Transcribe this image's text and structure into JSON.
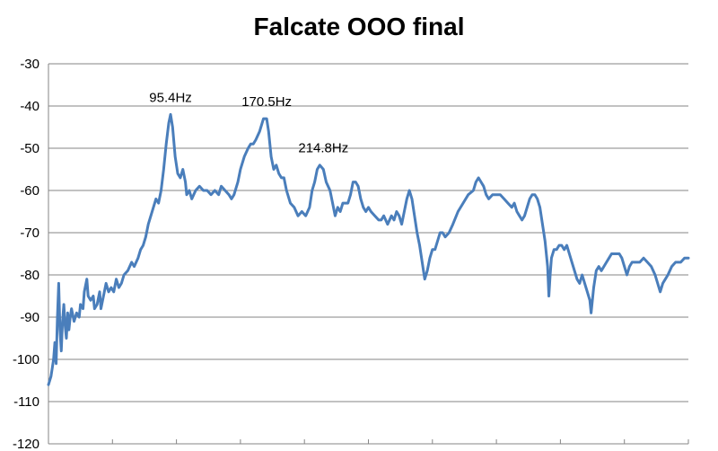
{
  "chart_data": {
    "type": "line",
    "title": "Falcate OOO final",
    "xlabel": "",
    "ylabel": "",
    "xlim": [
      0,
      500
    ],
    "ylim": [
      -120,
      -30
    ],
    "x_ticks": [
      "0",
      "50",
      "100",
      "150",
      "200",
      "250",
      "300",
      "350",
      "400",
      "450",
      "500"
    ],
    "y_ticks": [
      "-30",
      "-40",
      "-50",
      "-60",
      "-70",
      "-80",
      "-90",
      "-100",
      "-110",
      "-120"
    ],
    "grid": "horizontal",
    "legend": "none",
    "series": [
      {
        "color": "#4a7ebb",
        "points": [
          [
            0,
            -106
          ],
          [
            2,
            -104
          ],
          [
            4,
            -100
          ],
          [
            5,
            -96
          ],
          [
            6,
            -101
          ],
          [
            7,
            -90
          ],
          [
            8,
            -82
          ],
          [
            9,
            -93
          ],
          [
            10,
            -98
          ],
          [
            11,
            -91
          ],
          [
            12,
            -87
          ],
          [
            13,
            -92
          ],
          [
            14,
            -95
          ],
          [
            15,
            -89
          ],
          [
            16,
            -93
          ],
          [
            17,
            -90
          ],
          [
            18,
            -88
          ],
          [
            20,
            -91
          ],
          [
            22,
            -89
          ],
          [
            24,
            -90
          ],
          [
            25,
            -87
          ],
          [
            27,
            -88
          ],
          [
            28,
            -84
          ],
          [
            30,
            -81
          ],
          [
            31,
            -85
          ],
          [
            33,
            -86
          ],
          [
            35,
            -85
          ],
          [
            36,
            -88
          ],
          [
            38,
            -87
          ],
          [
            40,
            -84
          ],
          [
            41,
            -88
          ],
          [
            43,
            -85
          ],
          [
            45,
            -82
          ],
          [
            47,
            -84
          ],
          [
            49,
            -83
          ],
          [
            51,
            -84
          ],
          [
            53,
            -81
          ],
          [
            55,
            -83
          ],
          [
            57,
            -82
          ],
          [
            59,
            -80
          ],
          [
            62,
            -79
          ],
          [
            65,
            -77
          ],
          [
            67,
            -78
          ],
          [
            70,
            -76
          ],
          [
            72,
            -74
          ],
          [
            74,
            -73
          ],
          [
            76,
            -71
          ],
          [
            78,
            -68
          ],
          [
            80,
            -66
          ],
          [
            82,
            -64
          ],
          [
            84,
            -62
          ],
          [
            86,
            -63
          ],
          [
            88,
            -60
          ],
          [
            90,
            -55
          ],
          [
            92,
            -49
          ],
          [
            94,
            -44
          ],
          [
            95.4,
            -42
          ],
          [
            97,
            -45
          ],
          [
            99,
            -52
          ],
          [
            101,
            -56
          ],
          [
            103,
            -57
          ],
          [
            105,
            -55
          ],
          [
            107,
            -58
          ],
          [
            108,
            -61
          ],
          [
            110,
            -60
          ],
          [
            112,
            -62
          ],
          [
            115,
            -60
          ],
          [
            118,
            -59
          ],
          [
            121,
            -60
          ],
          [
            124,
            -60
          ],
          [
            127,
            -61
          ],
          [
            130,
            -60
          ],
          [
            133,
            -61
          ],
          [
            135,
            -59
          ],
          [
            138,
            -60
          ],
          [
            141,
            -61
          ],
          [
            143,
            -62
          ],
          [
            145,
            -61
          ],
          [
            148,
            -58
          ],
          [
            150,
            -55
          ],
          [
            153,
            -52
          ],
          [
            156,
            -50
          ],
          [
            158,
            -49
          ],
          [
            160,
            -49
          ],
          [
            162,
            -48
          ],
          [
            165,
            -46
          ],
          [
            168,
            -43
          ],
          [
            170.5,
            -43
          ],
          [
            172,
            -46
          ],
          [
            174,
            -52
          ],
          [
            176,
            -55
          ],
          [
            178,
            -54
          ],
          [
            180,
            -56
          ],
          [
            182,
            -57
          ],
          [
            184,
            -57
          ],
          [
            186,
            -60
          ],
          [
            189,
            -63
          ],
          [
            192,
            -64
          ],
          [
            195,
            -66
          ],
          [
            198,
            -65
          ],
          [
            201,
            -66
          ],
          [
            204,
            -64
          ],
          [
            206,
            -60
          ],
          [
            208,
            -58
          ],
          [
            210,
            -55
          ],
          [
            212,
            -54
          ],
          [
            214.8,
            -55
          ],
          [
            217,
            -58
          ],
          [
            220,
            -60
          ],
          [
            222,
            -63
          ],
          [
            224,
            -66
          ],
          [
            226,
            -64
          ],
          [
            228,
            -65
          ],
          [
            230,
            -63
          ],
          [
            232,
            -63
          ],
          [
            234,
            -63
          ],
          [
            236,
            -61
          ],
          [
            238,
            -58
          ],
          [
            240,
            -58
          ],
          [
            242,
            -59
          ],
          [
            244,
            -62
          ],
          [
            246,
            -64
          ],
          [
            248,
            -65
          ],
          [
            250,
            -64
          ],
          [
            252,
            -65
          ],
          [
            255,
            -66
          ],
          [
            258,
            -67
          ],
          [
            260,
            -67
          ],
          [
            262,
            -66
          ],
          [
            265,
            -68
          ],
          [
            268,
            -66
          ],
          [
            270,
            -67
          ],
          [
            272,
            -65
          ],
          [
            274,
            -66
          ],
          [
            276,
            -68
          ],
          [
            278,
            -65
          ],
          [
            280,
            -62
          ],
          [
            282,
            -60
          ],
          [
            284,
            -62
          ],
          [
            286,
            -66
          ],
          [
            288,
            -70
          ],
          [
            290,
            -73
          ],
          [
            292,
            -77
          ],
          [
            294,
            -81
          ],
          [
            296,
            -79
          ],
          [
            298,
            -76
          ],
          [
            300,
            -74
          ],
          [
            302,
            -74
          ],
          [
            304,
            -72
          ],
          [
            306,
            -70
          ],
          [
            308,
            -70
          ],
          [
            310,
            -71
          ],
          [
            313,
            -70
          ],
          [
            316,
            -68
          ],
          [
            320,
            -65
          ],
          [
            324,
            -63
          ],
          [
            328,
            -61
          ],
          [
            332,
            -60
          ],
          [
            334,
            -58
          ],
          [
            336,
            -57
          ],
          [
            338,
            -58
          ],
          [
            340,
            -59
          ],
          [
            342,
            -61
          ],
          [
            344,
            -62
          ],
          [
            347,
            -61
          ],
          [
            350,
            -61
          ],
          [
            353,
            -61
          ],
          [
            356,
            -62
          ],
          [
            359,
            -63
          ],
          [
            362,
            -64
          ],
          [
            364,
            -63
          ],
          [
            366,
            -65
          ],
          [
            368,
            -66
          ],
          [
            370,
            -67
          ],
          [
            372,
            -66
          ],
          [
            374,
            -64
          ],
          [
            376,
            -62
          ],
          [
            378,
            -61
          ],
          [
            380,
            -61
          ],
          [
            382,
            -62
          ],
          [
            384,
            -64
          ],
          [
            386,
            -68
          ],
          [
            388,
            -72
          ],
          [
            390,
            -78
          ],
          [
            391,
            -85
          ],
          [
            392,
            -80
          ],
          [
            393,
            -76
          ],
          [
            395,
            -74
          ],
          [
            397,
            -74
          ],
          [
            399,
            -73
          ],
          [
            401,
            -73
          ],
          [
            403,
            -74
          ],
          [
            405,
            -73
          ],
          [
            407,
            -75
          ],
          [
            409,
            -77
          ],
          [
            411,
            -79
          ],
          [
            413,
            -81
          ],
          [
            415,
            -82
          ],
          [
            417,
            -80
          ],
          [
            419,
            -82
          ],
          [
            421,
            -84
          ],
          [
            423,
            -86
          ],
          [
            424,
            -89
          ],
          [
            426,
            -83
          ],
          [
            428,
            -79
          ],
          [
            430,
            -78
          ],
          [
            432,
            -79
          ],
          [
            434,
            -78
          ],
          [
            436,
            -77
          ],
          [
            438,
            -76
          ],
          [
            440,
            -75
          ],
          [
            443,
            -75
          ],
          [
            446,
            -75
          ],
          [
            448,
            -76
          ],
          [
            450,
            -78
          ],
          [
            452,
            -80
          ],
          [
            454,
            -78
          ],
          [
            456,
            -77
          ],
          [
            459,
            -77
          ],
          [
            462,
            -77
          ],
          [
            465,
            -76
          ],
          [
            468,
            -77
          ],
          [
            471,
            -78
          ],
          [
            474,
            -80
          ],
          [
            476,
            -82
          ],
          [
            478,
            -84
          ],
          [
            480,
            -82
          ],
          [
            482,
            -81
          ],
          [
            484,
            -80
          ],
          [
            487,
            -78
          ],
          [
            490,
            -77
          ],
          [
            494,
            -77
          ],
          [
            497,
            -76
          ],
          [
            500,
            -76
          ]
        ]
      }
    ],
    "annotations": [
      {
        "text": "95.4Hz",
        "x": 95.4,
        "y": -39
      },
      {
        "text": "170.5Hz",
        "x": 170.5,
        "y": -40
      },
      {
        "text": "214.8Hz",
        "x": 214.8,
        "y": -51
      }
    ]
  }
}
